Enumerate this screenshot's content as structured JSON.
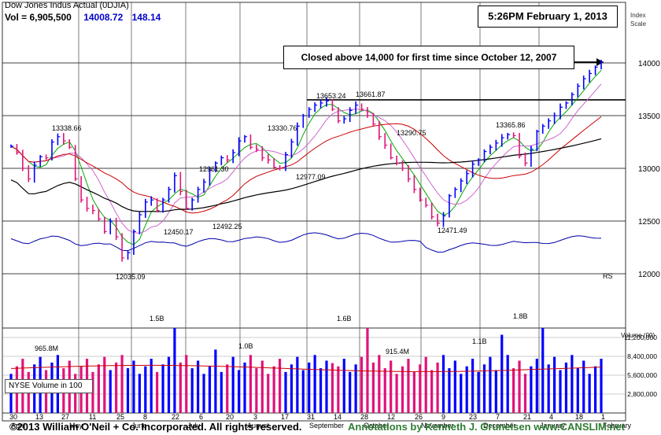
{
  "header": {
    "title": "Dow Jones Indus Actual  (0DJIA)",
    "volume_text": "Vol = 6,905,500",
    "price": "14008.72",
    "change": "148.14"
  },
  "timestamp": "5:26PM February 1, 2013",
  "scale_label_line1": "Index",
  "scale_label_line2": "Scale",
  "annotation": "Closed above 14,000 for first time since October 12, 2007",
  "nyse_label": "NYSE Volume in 100",
  "footer": {
    "copyright": "©2013 William O'Neil + Co. Incorporated. All rights reserved.",
    "annotations_by": "Annotations by Kenneth J. Gruneisen www.CANSLIM.net"
  },
  "colors": {
    "up": "#0000ff",
    "down": "#e0137a",
    "ma10": "#00aa00",
    "ma20": "#cc66cc",
    "ma50": "#cc0000",
    "ma200": "#000000",
    "rs": "#0000aa"
  },
  "chart_data": {
    "type": "line",
    "title": "Dow Jones Indus Actual (0DJIA)",
    "price_axis": {
      "ticks": [
        12000,
        12500,
        13000,
        13500,
        14000
      ],
      "ylim": [
        11750,
        14280
      ]
    },
    "volume_axis": {
      "title": "Volume (00)",
      "ticks": [
        {
          "label": "11,200,000",
          "value": 11200000
        },
        {
          "label": "8,400,000",
          "value": 8400000
        },
        {
          "label": "5,600,000",
          "value": 5600000
        },
        {
          "label": "2,800,000",
          "value": 2800000
        }
      ],
      "ylim": [
        0,
        13000000
      ]
    },
    "x_date_labels": [
      "30",
      "13",
      "27",
      "11",
      "25",
      "8",
      "22",
      "6",
      "20",
      "3",
      "17",
      "31",
      "14",
      "28",
      "12",
      "26",
      "9",
      "23",
      "7",
      "21",
      "4",
      "18",
      "1"
    ],
    "x_month_labels": [
      "April",
      "May",
      "June",
      "July",
      "August",
      "September",
      "October",
      "November",
      "December",
      "January",
      "February"
    ],
    "price_annotations": [
      {
        "label": "13338.66",
        "value": 13338.66
      },
      {
        "label": "12035.09",
        "value": 12035.09
      },
      {
        "label": "12450.17",
        "value": 12450.17
      },
      {
        "label": "12961.30",
        "value": 12961.3
      },
      {
        "label": "12492.25",
        "value": 12492.25
      },
      {
        "label": "13330.76",
        "value": 13330.76
      },
      {
        "label": "12977.09",
        "value": 12977.09
      },
      {
        "label": "13653.24",
        "value": 13653.24
      },
      {
        "label": "13661.87",
        "value": 13661.87
      },
      {
        "label": "13290.75",
        "value": 13290.75
      },
      {
        "label": "12471.49",
        "value": 12471.49
      },
      {
        "label": "13365.86",
        "value": 13365.86
      }
    ],
    "volume_annotations": [
      "965.8M",
      "1.5B",
      "1.0B",
      "1.6B",
      "915.4M",
      "1.1B",
      "1.8B"
    ],
    "rs_label": "RS",
    "reference_lines": [
      {
        "name": "14000 level",
        "value": 14000
      },
      {
        "name": "13650 resistance",
        "value": 13650
      }
    ],
    "closes": [
      13210,
      13150,
      13000,
      12900,
      13030,
      13110,
      13100,
      13250,
      13300,
      13260,
      13200,
      12900,
      12700,
      12620,
      12600,
      12520,
      12400,
      12500,
      12350,
      12150,
      12200,
      12400,
      12560,
      12680,
      12700,
      12600,
      12700,
      12800,
      12930,
      12780,
      12620,
      12700,
      12800,
      12870,
      12980,
      13050,
      13100,
      13080,
      13150,
      13260,
      13300,
      13200,
      13180,
      13100,
      13080,
      13010,
      13000,
      13130,
      13250,
      13400,
      13500,
      13560,
      13600,
      13620,
      13640,
      13560,
      13450,
      13470,
      13550,
      13600,
      13560,
      13500,
      13420,
      13300,
      13220,
      13100,
      13050,
      13000,
      12900,
      12800,
      12700,
      12650,
      12540,
      12480,
      12550,
      12740,
      12800,
      12880,
      12950,
      13040,
      13080,
      13160,
      13200,
      13240,
      13290,
      13320,
      13310,
      13120,
      13050,
      13180,
      13350,
      13400,
      13450,
      13500,
      13580,
      13620,
      13700,
      13780,
      13850,
      13900,
      13960,
      14008.72
    ]
  }
}
